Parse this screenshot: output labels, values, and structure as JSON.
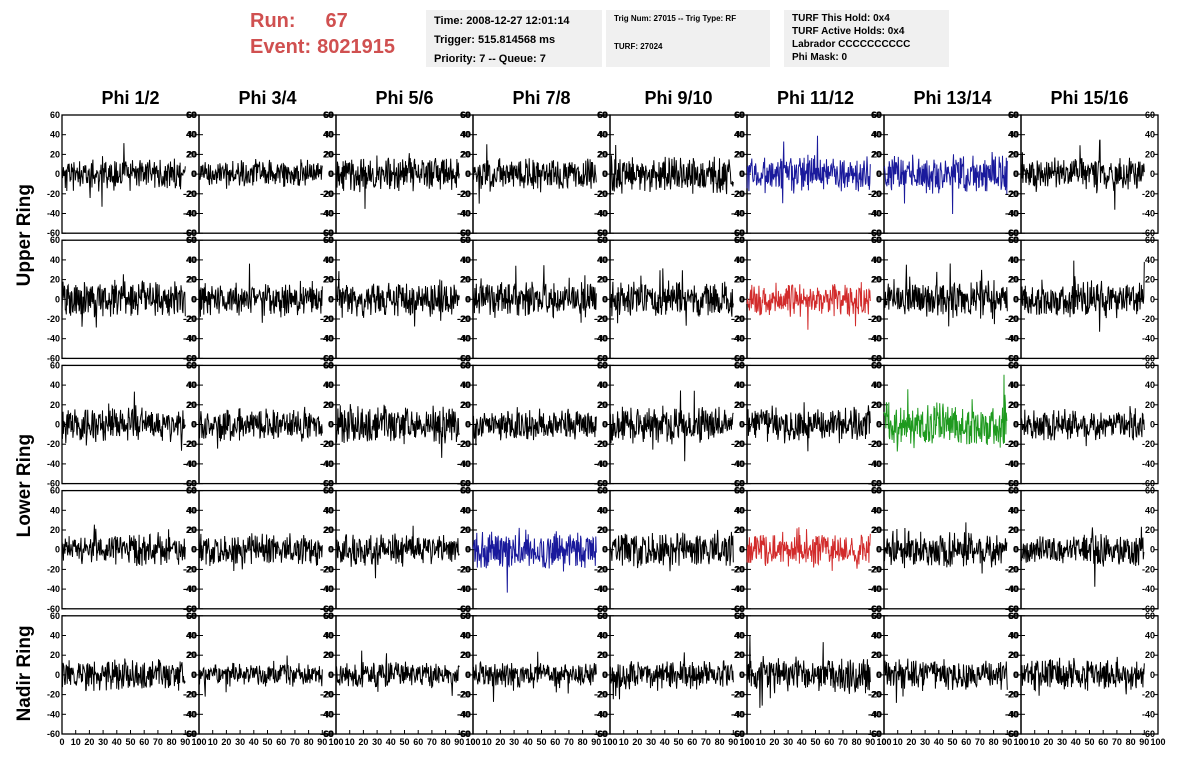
{
  "header": {
    "run_label": "Run:",
    "run_value": "67",
    "event_label": "Event:",
    "event_value": "8021915",
    "time_line": "Time: 2008-12-27 12:01:14",
    "trigger_line": "Trigger: 515.814568 ms",
    "priority_line": "Priority: 7 -- Queue: 7",
    "trig_num_line": "Trig Num: 27015 -- Trig Type: RF",
    "turf_line": "TURF: 27024",
    "turf_hold_line": "TURF This Hold: 0x4",
    "turf_active_line": "TURF Active Holds: 0x4",
    "labrador_line": "Labrador CCCCCCCCCC",
    "phi_mask_line": "Phi Mask: 0"
  },
  "chart_data": {
    "type": "line",
    "description_columns": [
      "Phi 1/2",
      "Phi 3/4",
      "Phi 5/6",
      "Phi 7/8",
      "Phi 9/10",
      "Phi 11/12",
      "Phi 13/14",
      "Phi 15/16"
    ],
    "ring_labels": [
      {
        "text": "Upper Ring",
        "rows": [
          0,
          1
        ]
      },
      {
        "text": "Lower Ring",
        "rows": [
          2,
          3
        ]
      },
      {
        "text": "Nadir Ring",
        "rows": [
          4
        ]
      }
    ],
    "ylim": [
      -60,
      60
    ],
    "y_ticks": [
      -60,
      -40,
      -20,
      0,
      20,
      40,
      60
    ],
    "y_tick_labels": [
      "-60",
      "-40",
      "-20",
      "0",
      "20",
      "40",
      "60"
    ],
    "xlim": [
      0,
      100
    ],
    "x_ticks": [
      0,
      10,
      20,
      30,
      40,
      50,
      60,
      70,
      80,
      90,
      100
    ],
    "x_tick_labels": [
      "0",
      "10",
      "20",
      "30",
      "40",
      "50",
      "60",
      "70",
      "80",
      "90",
      "100"
    ],
    "samples_per_trace": 260,
    "colors": {
      "default": "#000000",
      "blue": "#1a1a9c",
      "red": "#d22b2b",
      "green": "#1e9a1e"
    },
    "rows": [
      {
        "traces": [
          {
            "color": "default",
            "amp": 13,
            "seed": 11
          },
          {
            "color": "default",
            "amp": 11,
            "seed": 12
          },
          {
            "color": "default",
            "amp": 14,
            "seed": 13
          },
          {
            "color": "default",
            "amp": 12,
            "seed": 14
          },
          {
            "color": "default",
            "amp": 15,
            "seed": 15
          },
          {
            "color": "blue",
            "amp": 14,
            "seed": 16
          },
          {
            "color": "blue",
            "amp": 15,
            "seed": 17
          },
          {
            "color": "default",
            "amp": 13,
            "seed": 18
          }
        ]
      },
      {
        "traces": [
          {
            "color": "default",
            "amp": 15,
            "seed": 21
          },
          {
            "color": "default",
            "amp": 13,
            "seed": 22
          },
          {
            "color": "default",
            "amp": 14,
            "seed": 23
          },
          {
            "color": "default",
            "amp": 14,
            "seed": 24
          },
          {
            "color": "default",
            "amp": 14,
            "seed": 25
          },
          {
            "color": "red",
            "amp": 13,
            "seed": 26
          },
          {
            "color": "default",
            "amp": 14,
            "seed": 27
          },
          {
            "color": "default",
            "amp": 14,
            "seed": 28
          }
        ]
      },
      {
        "traces": [
          {
            "color": "default",
            "amp": 13,
            "seed": 31
          },
          {
            "color": "default",
            "amp": 12,
            "seed": 32
          },
          {
            "color": "default",
            "amp": 15,
            "seed": 33
          },
          {
            "color": "default",
            "amp": 12,
            "seed": 34
          },
          {
            "color": "default",
            "amp": 14,
            "seed": 35
          },
          {
            "color": "default",
            "amp": 14,
            "seed": 36
          },
          {
            "color": "green",
            "amp": 18,
            "seed": 37
          },
          {
            "color": "default",
            "amp": 12,
            "seed": 38
          }
        ]
      },
      {
        "traces": [
          {
            "color": "default",
            "amp": 12,
            "seed": 41
          },
          {
            "color": "default",
            "amp": 12,
            "seed": 42
          },
          {
            "color": "default",
            "amp": 12,
            "seed": 43
          },
          {
            "color": "blue",
            "amp": 16,
            "seed": 44
          },
          {
            "color": "default",
            "amp": 14,
            "seed": 45
          },
          {
            "color": "red",
            "amp": 13,
            "seed": 46
          },
          {
            "color": "default",
            "amp": 14,
            "seed": 47
          },
          {
            "color": "default",
            "amp": 13,
            "seed": 48
          }
        ]
      },
      {
        "traces": [
          {
            "color": "default",
            "amp": 12,
            "seed": 51
          },
          {
            "color": "default",
            "amp": 9,
            "seed": 52
          },
          {
            "color": "default",
            "amp": 10,
            "seed": 53
          },
          {
            "color": "default",
            "amp": 10,
            "seed": 54
          },
          {
            "color": "default",
            "amp": 11,
            "seed": 55
          },
          {
            "color": "default",
            "amp": 14,
            "seed": 56
          },
          {
            "color": "default",
            "amp": 12,
            "seed": 57
          },
          {
            "color": "default",
            "amp": 13,
            "seed": 58
          }
        ]
      }
    ]
  }
}
